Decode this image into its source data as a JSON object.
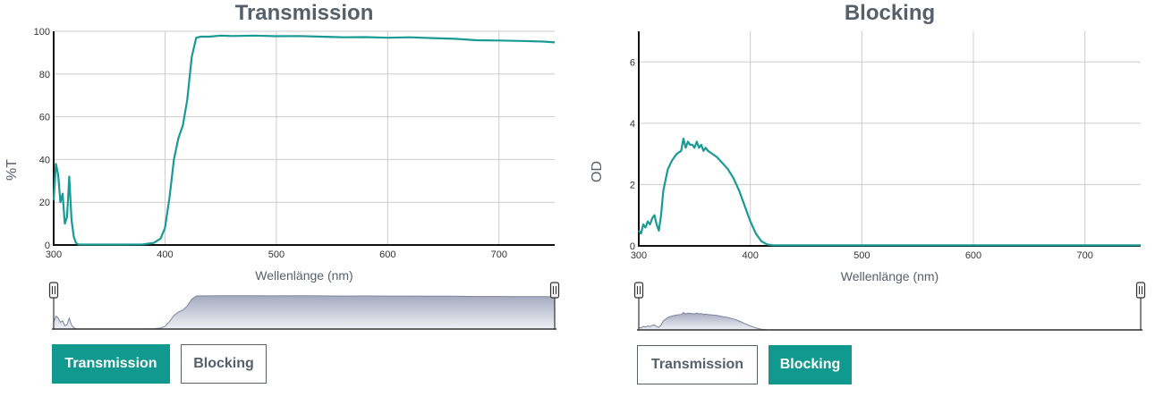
{
  "colors": {
    "line": "#1a9a94",
    "grid": "#cccccc",
    "axis": "#111111",
    "text": "#55606b",
    "active_button": "#12998f",
    "overview_fill_top": "#a5abbf",
    "overview_fill_bottom": "#eef0f5",
    "overview_line": "#7c849c"
  },
  "chart_data": [
    {
      "type": "line",
      "title": "Transmission",
      "xlabel": "Wellenlänge (nm)",
      "ylabel": "%T",
      "xlim": [
        300,
        750
      ],
      "ylim": [
        0,
        100
      ],
      "x_ticks": [
        300,
        400,
        500,
        600,
        700
      ],
      "y_ticks": [
        0,
        20,
        40,
        60,
        80,
        100
      ],
      "grid": true,
      "x": [
        300,
        302,
        304,
        306,
        308,
        310,
        312,
        314,
        316,
        318,
        320,
        322,
        324,
        326,
        330,
        340,
        360,
        380,
        390,
        396,
        400,
        404,
        408,
        412,
        416,
        420,
        424,
        428,
        432,
        440,
        450,
        460,
        480,
        500,
        520,
        540,
        560,
        580,
        600,
        620,
        640,
        660,
        680,
        700,
        720,
        740,
        750
      ],
      "y": [
        21,
        38,
        33,
        20,
        24,
        10,
        13,
        32,
        12,
        4,
        1,
        0.3,
        0.2,
        0.2,
        0.2,
        0.2,
        0.2,
        0.3,
        1,
        3,
        8,
        22,
        40,
        50,
        56,
        68,
        88,
        97,
        97.5,
        97.5,
        98,
        97.8,
        98,
        97.7,
        97.8,
        97.5,
        97.2,
        97.3,
        97,
        97.2,
        96.8,
        96.5,
        95.8,
        95.7,
        95.5,
        95.2,
        94.8
      ]
    },
    {
      "type": "line",
      "title": "Blocking",
      "xlabel": "Wellenlänge (nm)",
      "ylabel": "OD",
      "xlim": [
        300,
        750
      ],
      "ylim": [
        0,
        7
      ],
      "x_ticks": [
        300,
        400,
        500,
        600,
        700
      ],
      "y_ticks": [
        0,
        2,
        4,
        6
      ],
      "grid": true,
      "x": [
        300,
        302,
        304,
        306,
        308,
        310,
        312,
        314,
        316,
        318,
        320,
        322,
        326,
        330,
        334,
        338,
        340,
        342,
        344,
        346,
        348,
        350,
        352,
        354,
        356,
        358,
        360,
        362,
        366,
        370,
        375,
        380,
        385,
        390,
        395,
        400,
        405,
        410,
        415,
        420,
        425,
        500,
        600,
        700,
        750
      ],
      "y": [
        0.5,
        0.4,
        0.7,
        0.6,
        0.8,
        0.7,
        0.9,
        1.0,
        0.7,
        0.5,
        1.0,
        1.8,
        2.5,
        2.8,
        3.0,
        3.1,
        3.5,
        3.2,
        3.4,
        3.3,
        3.3,
        3.2,
        3.4,
        3.2,
        3.3,
        3.1,
        3.2,
        3.1,
        3.0,
        2.9,
        2.7,
        2.5,
        2.2,
        1.8,
        1.3,
        0.8,
        0.4,
        0.15,
        0.05,
        0.02,
        0.02,
        0.02,
        0.02,
        0.02,
        0.02
      ]
    }
  ],
  "left_panel": {
    "buttons": {
      "transmission": "Transmission",
      "blocking": "Blocking"
    }
  },
  "right_panel": {
    "buttons": {
      "transmission": "Transmission",
      "blocking": "Blocking"
    }
  }
}
